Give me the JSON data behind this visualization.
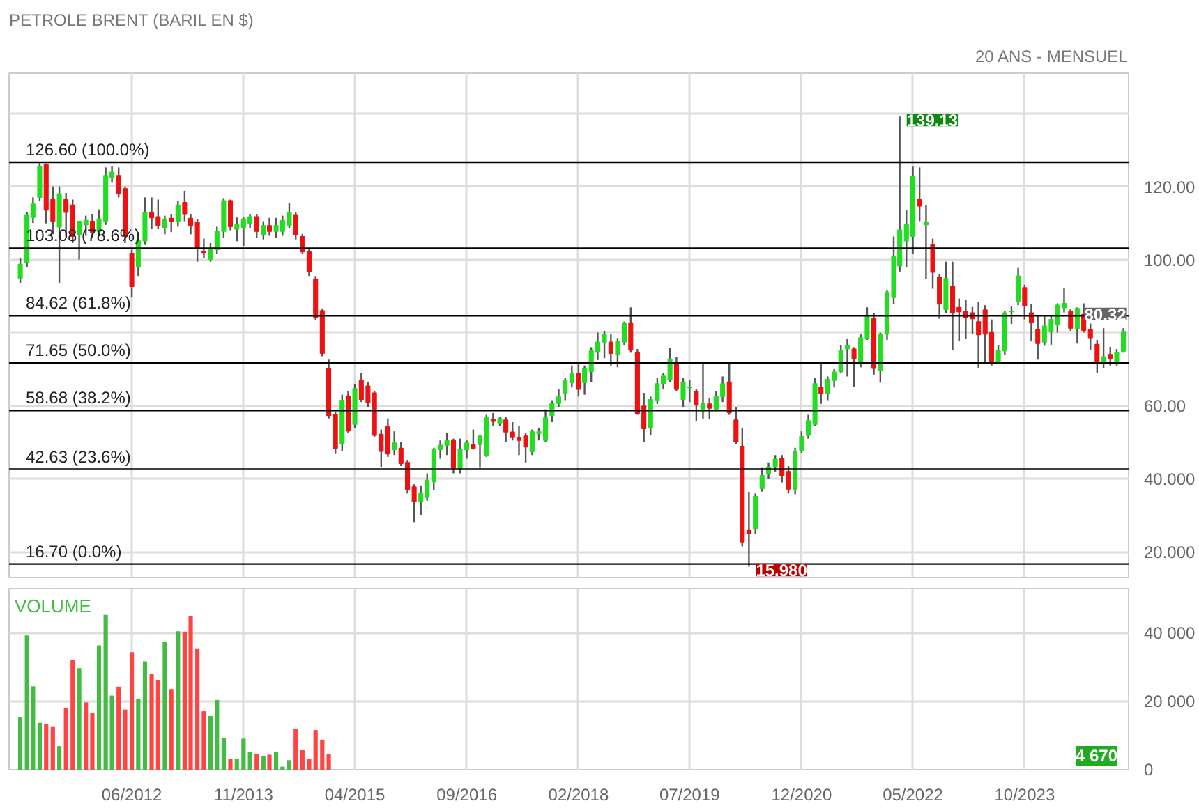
{
  "chart_data": [
    {
      "type": "candlestick",
      "title": "PETROLE BRENT (BARIL EN $)",
      "subtitle": "20 ANS - MENSUEL",
      "x": [
        "2011-01",
        "2011-02",
        "2011-03",
        "2011-04",
        "2011-05",
        "2011-06",
        "2011-07",
        "2011-08",
        "2011-09",
        "2011-10",
        "2011-11",
        "2011-12",
        "2012-01",
        "2012-02",
        "2012-03",
        "2012-04",
        "2012-05",
        "2012-06",
        "2012-07",
        "2012-08",
        "2012-09",
        "2012-10",
        "2012-11",
        "2012-12",
        "2013-01",
        "2013-02",
        "2013-03",
        "2013-04",
        "2013-05",
        "2013-06",
        "2013-07",
        "2013-08",
        "2013-09",
        "2013-10",
        "2013-11",
        "2013-12",
        "2014-01",
        "2014-02",
        "2014-03",
        "2014-04",
        "2014-05",
        "2014-06",
        "2014-07",
        "2014-08",
        "2014-09",
        "2014-10",
        "2014-11",
        "2014-12",
        "2015-01",
        "2015-02",
        "2015-03",
        "2015-04",
        "2015-05",
        "2015-06",
        "2015-07",
        "2015-08",
        "2015-09",
        "2015-10",
        "2015-11",
        "2015-12",
        "2016-01",
        "2016-02",
        "2016-03",
        "2016-04",
        "2016-05",
        "2016-06",
        "2016-07",
        "2016-08",
        "2016-09",
        "2016-10",
        "2016-11",
        "2016-12",
        "2017-01",
        "2017-02",
        "2017-03",
        "2017-04",
        "2017-05",
        "2017-06",
        "2017-07",
        "2017-08",
        "2017-09",
        "2017-10",
        "2017-11",
        "2017-12",
        "2018-01",
        "2018-02",
        "2018-03",
        "2018-04",
        "2018-05",
        "2018-06",
        "2018-07",
        "2018-08",
        "2018-09",
        "2018-10",
        "2018-11",
        "2018-12",
        "2019-01",
        "2019-02",
        "2019-03",
        "2019-04",
        "2019-05",
        "2019-06",
        "2019-07",
        "2019-08",
        "2019-09",
        "2019-10",
        "2019-11",
        "2019-12",
        "2020-01",
        "2020-02",
        "2020-03",
        "2020-04",
        "2020-05",
        "2020-06",
        "2020-07",
        "2020-08",
        "2020-09",
        "2020-10",
        "2020-11",
        "2020-12",
        "2021-01",
        "2021-02",
        "2021-03",
        "2021-04",
        "2021-05",
        "2021-06",
        "2021-07",
        "2021-08",
        "2021-09",
        "2021-10",
        "2021-11",
        "2021-12",
        "2022-01",
        "2022-02",
        "2022-03",
        "2022-04",
        "2022-05",
        "2022-06",
        "2022-07",
        "2022-08",
        "2022-09",
        "2022-10",
        "2022-11",
        "2022-12",
        "2023-01",
        "2023-02",
        "2023-03",
        "2023-04",
        "2023-05",
        "2023-06",
        "2023-07",
        "2023-08",
        "2023-09",
        "2023-10",
        "2023-11",
        "2023-12",
        "2024-01",
        "2024-02",
        "2024-03",
        "2024-04",
        "2024-05",
        "2024-06",
        "2024-07",
        "2024-08",
        "2024-09",
        "2024-10",
        "2024-11",
        "2024-12",
        "2025-01"
      ],
      "ohlc": [
        [
          94.9,
          100.3,
          93.5,
          98.7
        ],
        [
          99.1,
          113.0,
          97.9,
          112.3
        ],
        [
          111.5,
          117.0,
          110.0,
          115.2
        ],
        [
          117.0,
          126.5,
          116.0,
          125.6
        ],
        [
          126.0,
          126.3,
          109.9,
          113.5
        ],
        [
          116.4,
          120.0,
          106.9,
          110.5
        ],
        [
          108.9,
          120.0,
          93.5,
          118.0
        ],
        [
          116.4,
          118.2,
          106.3,
          112.9
        ],
        [
          114.9,
          116.4,
          104.5,
          106.3
        ],
        [
          106.9,
          110.5,
          100.0,
          110.5
        ],
        [
          109.5,
          112.0,
          106.5,
          110.7
        ],
        [
          110.5,
          112.5,
          106.0,
          107.5
        ],
        [
          107.7,
          113.7,
          106.5,
          111.1
        ],
        [
          110.5,
          125.2,
          109.5,
          123.0
        ],
        [
          122.4,
          125.6,
          121.0,
          123.9
        ],
        [
          123.0,
          125.2,
          117.0,
          118.0
        ],
        [
          119.4,
          120.0,
          104.5,
          106.3
        ],
        [
          101.7,
          102.7,
          89.6,
          92.6
        ],
        [
          97.9,
          107.5,
          95.5,
          105.1
        ],
        [
          105.1,
          117.0,
          104.0,
          112.9
        ],
        [
          112.9,
          117.0,
          108.3,
          111.4
        ],
        [
          111.7,
          116.4,
          108.3,
          109.3
        ],
        [
          108.7,
          112.0,
          106.9,
          111.1
        ],
        [
          111.3,
          112.5,
          107.5,
          110.4
        ],
        [
          110.5,
          116.0,
          109.0,
          114.9
        ],
        [
          115.6,
          118.8,
          110.5,
          112.5
        ],
        [
          111.3,
          112.5,
          106.9,
          109.3
        ],
        [
          110.2,
          111.0,
          99.4,
          103.1
        ],
        [
          102.3,
          105.7,
          100.3,
          101.9
        ],
        [
          100.1,
          104.5,
          99.4,
          102.7
        ],
        [
          102.7,
          109.0,
          101.5,
          107.7
        ],
        [
          107.7,
          116.8,
          106.0,
          116.1
        ],
        [
          116.1,
          116.4,
          108.0,
          109.0
        ],
        [
          108.3,
          111.5,
          105.0,
          109.5
        ],
        [
          108.7,
          111.5,
          103.7,
          111.1
        ],
        [
          109.9,
          112.5,
          108.5,
          111.7
        ],
        [
          111.7,
          112.5,
          106.0,
          107.7
        ],
        [
          106.9,
          110.5,
          105.5,
          109.3
        ],
        [
          109.3,
          111.4,
          106.5,
          107.7
        ],
        [
          107.7,
          111.4,
          106.0,
          109.3
        ],
        [
          107.7,
          112.0,
          106.5,
          110.7
        ],
        [
          109.3,
          115.5,
          108.5,
          112.9
        ],
        [
          112.3,
          113.0,
          105.5,
          106.9
        ],
        [
          106.3,
          107.0,
          101.5,
          102.1
        ],
        [
          102.1,
          103.0,
          95.5,
          96.7
        ],
        [
          94.7,
          95.5,
          83.5,
          84.2
        ],
        [
          86.0,
          86.5,
          73.5,
          74.3
        ],
        [
          70.2,
          72.6,
          56.5,
          57.3
        ],
        [
          57.5,
          58.5,
          46.8,
          48.4
        ],
        [
          49.5,
          63.0,
          47.5,
          61.5
        ],
        [
          62.7,
          64.0,
          52.5,
          53.1
        ],
        [
          54.9,
          66.0,
          54.0,
          64.7
        ],
        [
          66.9,
          68.9,
          61.0,
          61.7
        ],
        [
          65.4,
          66.5,
          59.5,
          60.9
        ],
        [
          63.5,
          64.0,
          51.5,
          51.9
        ],
        [
          52.2,
          53.5,
          43.2,
          47.5
        ],
        [
          54.3,
          56.5,
          46.0,
          46.8
        ],
        [
          48.0,
          53.0,
          46.5,
          49.8
        ],
        [
          48.4,
          50.0,
          43.5,
          44.2
        ],
        [
          44.5,
          45.0,
          36.0,
          37.0
        ],
        [
          37.8,
          38.5,
          28.0,
          33.7
        ],
        [
          33.7,
          38.0,
          30.0,
          36.0
        ],
        [
          34.9,
          41.5,
          34.0,
          39.6
        ],
        [
          39.2,
          48.5,
          37.0,
          48.1
        ],
        [
          48.0,
          50.5,
          45.5,
          49.2
        ],
        [
          49.2,
          52.5,
          46.5,
          50.5
        ],
        [
          50.5,
          51.0,
          41.5,
          43.0
        ],
        [
          42.7,
          51.0,
          41.5,
          48.1
        ],
        [
          48.0,
          50.5,
          45.5,
          49.8
        ],
        [
          49.3,
          53.5,
          48.0,
          48.4
        ],
        [
          49.4,
          52.0,
          43.0,
          51.7
        ],
        [
          46.3,
          57.5,
          46.0,
          56.7
        ],
        [
          56.2,
          58.0,
          54.5,
          55.7
        ],
        [
          55.3,
          57.0,
          54.5,
          56.5
        ],
        [
          56.1,
          57.0,
          50.0,
          52.8
        ],
        [
          52.8,
          55.5,
          50.5,
          51.3
        ],
        [
          51.3,
          54.5,
          46.5,
          50.5
        ],
        [
          51.7,
          52.5,
          44.5,
          48.7
        ],
        [
          47.4,
          53.5,
          46.5,
          52.9
        ],
        [
          52.4,
          54.0,
          50.5,
          52.9
        ],
        [
          50.5,
          59.0,
          50.0,
          56.7
        ],
        [
          57.3,
          61.5,
          55.5,
          60.6
        ],
        [
          60.6,
          64.5,
          59.5,
          62.4
        ],
        [
          63.3,
          67.5,
          61.5,
          66.9
        ],
        [
          66.3,
          71.0,
          65.0,
          68.9
        ],
        [
          68.9,
          71.5,
          62.5,
          64.5
        ],
        [
          66.3,
          71.0,
          63.0,
          70.2
        ],
        [
          69.3,
          76.0,
          66.5,
          75.0
        ],
        [
          74.6,
          80.0,
          72.5,
          77.4
        ],
        [
          77.4,
          80.5,
          73.0,
          79.4
        ],
        [
          77.4,
          79.5,
          71.0,
          74.3
        ],
        [
          73.9,
          78.5,
          70.5,
          77.6
        ],
        [
          77.4,
          83.0,
          76.5,
          82.6
        ],
        [
          82.7,
          86.9,
          74.5,
          75.2
        ],
        [
          74.6,
          75.5,
          57.5,
          57.9
        ],
        [
          59.9,
          63.5,
          50.1,
          53.7
        ],
        [
          54.1,
          62.5,
          52.0,
          61.7
        ],
        [
          61.5,
          67.5,
          60.5,
          66.0
        ],
        [
          66.0,
          69.0,
          64.5,
          68.1
        ],
        [
          67.2,
          75.8,
          66.5,
          72.8
        ],
        [
          71.6,
          73.4,
          64.0,
          64.5
        ],
        [
          61.7,
          67.5,
          59.5,
          66.5
        ],
        [
          64.9,
          67.0,
          61.0,
          65.0
        ],
        [
          63.9,
          64.5,
          55.9,
          60.2
        ],
        [
          58.5,
          72.0,
          56.5,
          60.6
        ],
        [
          60.5,
          62.0,
          56.4,
          59.3
        ],
        [
          59.1,
          64.0,
          58.5,
          62.5
        ],
        [
          62.5,
          68.0,
          61.0,
          66.0
        ],
        [
          66.5,
          72.0,
          57.5,
          58.1
        ],
        [
          56.1,
          59.5,
          49.5,
          50.1
        ],
        [
          48.9,
          54.0,
          21.5,
          22.7
        ],
        [
          25.9,
          36.4,
          15.98,
          25.1
        ],
        [
          26.2,
          36.0,
          25.0,
          35.2
        ],
        [
          37.3,
          43.0,
          36.5,
          40.9
        ],
        [
          41.5,
          44.5,
          40.0,
          43.2
        ],
        [
          43.2,
          46.5,
          42.0,
          45.4
        ],
        [
          45.6,
          46.5,
          39.0,
          40.8
        ],
        [
          42.0,
          43.5,
          36.0,
          37.2
        ],
        [
          37.2,
          48.5,
          35.8,
          47.5
        ],
        [
          47.8,
          53.0,
          47.0,
          51.6
        ],
        [
          51.9,
          57.5,
          51.0,
          55.9
        ],
        [
          54.9,
          67.5,
          54.5,
          66.0
        ],
        [
          65.1,
          71.3,
          60.5,
          63.3
        ],
        [
          63.3,
          68.0,
          61.5,
          67.2
        ],
        [
          66.9,
          70.0,
          65.0,
          69.2
        ],
        [
          69.3,
          76.5,
          69.0,
          75.0
        ],
        [
          75.6,
          78.2,
          68.0,
          76.4
        ],
        [
          75.5,
          76.0,
          65.1,
          72.9
        ],
        [
          71.4,
          79.5,
          70.5,
          78.6
        ],
        [
          78.5,
          86.9,
          78.0,
          84.4
        ],
        [
          83.8,
          85.4,
          68.5,
          70.2
        ],
        [
          69.6,
          80.0,
          66.3,
          79.4
        ],
        [
          79.6,
          91.5,
          78.0,
          91.1
        ],
        [
          89.6,
          106.3,
          87.8,
          100.9
        ],
        [
          98.2,
          139.13,
          96.7,
          108.1
        ],
        [
          105.1,
          113.5,
          98.0,
          109.5
        ],
        [
          106.3,
          125.4,
          101.5,
          122.7
        ],
        [
          116.4,
          125.2,
          110.5,
          114.6
        ],
        [
          109.5,
          114.9,
          94.6,
          110.2
        ],
        [
          104.1,
          105.7,
          92.0,
          96.5
        ],
        [
          95.2,
          96.0,
          83.8,
          87.8
        ],
        [
          86.3,
          99.4,
          85.4,
          94.8
        ],
        [
          92.7,
          99.4,
          75.2,
          85.4
        ],
        [
          86.9,
          89.3,
          77.8,
          85.7
        ],
        [
          85.7,
          89.0,
          78.2,
          84.2
        ],
        [
          85.4,
          87.0,
          79.5,
          83.8
        ],
        [
          83.0,
          88.4,
          70.4,
          79.4
        ],
        [
          86.2,
          87.5,
          71.4,
          79.6
        ],
        [
          80.2,
          83.6,
          71.0,
          72.2
        ],
        [
          72.0,
          76.5,
          71.4,
          75.0
        ],
        [
          75.0,
          86.0,
          74.0,
          85.4
        ],
        [
          85.7,
          87.2,
          82.4,
          85.8
        ],
        [
          88.4,
          97.7,
          87.5,
          95.5
        ],
        [
          92.3,
          93.1,
          83.6,
          87.4
        ],
        [
          85.4,
          87.8,
          77.6,
          82.7
        ],
        [
          80.8,
          84.8,
          72.6,
          77.0
        ],
        [
          77.4,
          84.5,
          76.4,
          81.8
        ],
        [
          80.4,
          84.5,
          76.7,
          83.6
        ],
        [
          82.1,
          88.0,
          80.0,
          87.5
        ],
        [
          86.8,
          92.2,
          85.5,
          88.0
        ],
        [
          85.7,
          86.5,
          80.5,
          81.2
        ],
        [
          81.0,
          86.9,
          77.0,
          86.6
        ],
        [
          85.0,
          88.0,
          80.0,
          80.6
        ],
        [
          80.8,
          82.5,
          75.2,
          78.6
        ],
        [
          76.8,
          78.0,
          69.0,
          71.6
        ],
        [
          71.6,
          81.2,
          70.2,
          73.4
        ],
        [
          74.0,
          76.1,
          71.0,
          72.8
        ],
        [
          71.4,
          75.5,
          71.0,
          74.6
        ],
        [
          74.9,
          81.2,
          74.5,
          80.32
        ]
      ],
      "xlim": [
        "2010-11-10",
        "2025-01-25"
      ],
      "xticks": [
        {
          "value": "2012-06",
          "label": null
        },
        {
          "value": "2013-11",
          "label": null
        },
        {
          "value": "2015-04",
          "label": null
        },
        {
          "value": "2016-09",
          "label": null
        },
        {
          "value": "2018-02",
          "label": null
        },
        {
          "value": "2019-07",
          "label": null
        },
        {
          "value": "2020-12",
          "label": null
        },
        {
          "value": "2022-05",
          "label": null
        },
        {
          "value": "2023-10",
          "label": null
        }
      ],
      "ylim": [
        13,
        151
      ],
      "yticks": [
        {
          "value": 20,
          "label": "20.000"
        },
        {
          "value": 40,
          "label": "40.000"
        },
        {
          "value": 60,
          "label": "60.00"
        },
        {
          "value": 80,
          "label": null
        },
        {
          "value": 100,
          "label": "100.00"
        },
        {
          "value": 120,
          "label": "120.00"
        },
        {
          "value": 140,
          "label": null
        }
      ],
      "tick_labels": "y",
      "grid": true,
      "ref_lines": [
        {
          "axis": "y",
          "value": 126.6,
          "label": "126.60  (100.0%)"
        },
        {
          "axis": "y",
          "value": 103.08,
          "label": "103.08  (78.6%)"
        },
        {
          "axis": "y",
          "value": 84.62,
          "label": "84.62  (61.8%)"
        },
        {
          "axis": "y",
          "value": 71.65,
          "label": "71.65  (50.0%)"
        },
        {
          "axis": "y",
          "value": 58.68,
          "label": "58.68  (38.2%)"
        },
        {
          "axis": "y",
          "value": 42.63,
          "label": "42.63  (23.6%)"
        },
        {
          "axis": "y",
          "value": 16.7,
          "label": "16.70  (0.0%)"
        }
      ],
      "annotations": [
        {
          "text": "139.13",
          "x": "2022-03",
          "y": 139.13
        },
        {
          "text": "80.32",
          "x": "2025-01",
          "y": 80.32
        },
        {
          "text": "15.980",
          "x": "2020-04",
          "y": 15.98
        }
      ]
    },
    {
      "type": "bar",
      "title": "VOLUME",
      "x": [
        "2011-01",
        "2011-02",
        "2011-03",
        "2011-04",
        "2011-05",
        "2011-06",
        "2011-07",
        "2011-08",
        "2011-09",
        "2011-10",
        "2011-11",
        "2011-12",
        "2012-01",
        "2012-02",
        "2012-03",
        "2012-04",
        "2012-05",
        "2012-06",
        "2012-07",
        "2012-08",
        "2012-09",
        "2012-10",
        "2012-11",
        "2012-12",
        "2013-01",
        "2013-02",
        "2013-03",
        "2013-04",
        "2013-05",
        "2013-06",
        "2013-07",
        "2013-08",
        "2013-09",
        "2013-10",
        "2013-11",
        "2013-12",
        "2014-01",
        "2014-02",
        "2014-03",
        "2014-04",
        "2014-05",
        "2014-06",
        "2014-07",
        "2014-08",
        "2014-09",
        "2014-10",
        "2014-11",
        "2014-12"
      ],
      "values": [
        15300,
        39300,
        24400,
        13700,
        13300,
        12700,
        6900,
        18000,
        32000,
        29700,
        19700,
        16500,
        36400,
        45300,
        21700,
        24300,
        17600,
        34400,
        20800,
        31700,
        28000,
        26300,
        37300,
        23600,
        40500,
        40400,
        44900,
        35300,
        17100,
        15700,
        20400,
        9200,
        3100,
        3200,
        9100,
        5100,
        4700,
        4000,
        4400,
        5300,
        900,
        2800,
        12000,
        5700,
        3200,
        11600,
        8800,
        4500
      ],
      "colors": [
        "#44bb44",
        "#44bb44",
        "#44bb44",
        "#44bb44",
        "#ff4444",
        "#ff4444",
        "#44bb44",
        "#ff4444",
        "#ff4444",
        "#44bb44",
        "#ff4444",
        "#ff4444",
        "#44bb44",
        "#44bb44",
        "#44bb44",
        "#ff4444",
        "#ff4444",
        "#ff4444",
        "#44bb44",
        "#44bb44",
        "#ff4444",
        "#ff4444",
        "#44bb44",
        "#ff4444",
        "#44bb44",
        "#ff4444",
        "#ff4444",
        "#ff4444",
        "#ff4444",
        "#44bb44",
        "#44bb44",
        "#44bb44",
        "#ff4444",
        "#44bb44",
        "#44bb44",
        "#44bb44",
        "#ff4444",
        "#44bb44",
        "#ff4444",
        "#44bb44",
        "#44bb44",
        "#44bb44",
        "#ff4444",
        "#ff4444",
        "#ff4444",
        "#ff4444",
        "#ff4444",
        "#ff4444"
      ],
      "xlim": [
        "2010-11-10",
        "2025-01-25"
      ],
      "xticks": [
        {
          "value": "2012-06",
          "label": "06/2012"
        },
        {
          "value": "2013-11",
          "label": "11/2013"
        },
        {
          "value": "2015-04",
          "label": "04/2015"
        },
        {
          "value": "2016-09",
          "label": "09/2016"
        },
        {
          "value": "2018-02",
          "label": "02/2018"
        },
        {
          "value": "2019-07",
          "label": "07/2019"
        },
        {
          "value": "2020-12",
          "label": "12/2020"
        },
        {
          "value": "2022-05",
          "label": "05/2022"
        },
        {
          "value": "2023-10",
          "label": "10/2023"
        }
      ],
      "ylim": [
        0,
        53000
      ],
      "yticks": [
        0,
        {
          "value": 20000,
          "label": "20 000"
        },
        {
          "value": 40000,
          "label": "40 000"
        }
      ],
      "grid": true,
      "annotations": [
        "4 670"
      ]
    }
  ]
}
